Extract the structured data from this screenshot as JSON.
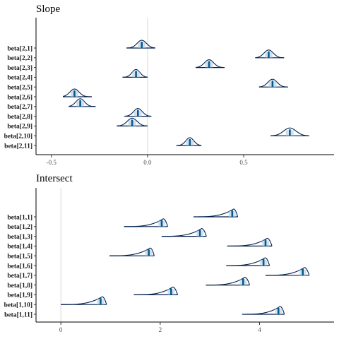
{
  "colors": {
    "ridge": "#011f4b",
    "interval": "#005b96",
    "refline": "#d9d9d9",
    "axis": "#000000"
  },
  "chart_data": [
    {
      "type": "ridgeline",
      "title": "Slope",
      "xlim": [
        -0.58,
        0.97
      ],
      "xticks": [
        -0.5,
        0.0,
        0.5
      ],
      "xtick_labels": [
        "-0.5",
        "0.0",
        "0.5"
      ],
      "vline": 0,
      "density": "symmetric",
      "params": [
        {
          "label": "beta[2,1]",
          "median": -0.03,
          "inner": [
            -0.05,
            -0.01
          ],
          "outer": [
            -0.11,
            0.04
          ]
        },
        {
          "label": "beta[2,2]",
          "median": 0.63,
          "inner": [
            0.61,
            0.65
          ],
          "outer": [
            0.56,
            0.71
          ]
        },
        {
          "label": "beta[2,3]",
          "median": 0.32,
          "inner": [
            0.3,
            0.34
          ],
          "outer": [
            0.25,
            0.4
          ]
        },
        {
          "label": "beta[2,4]",
          "median": -0.06,
          "inner": [
            -0.08,
            -0.04
          ],
          "outer": [
            -0.13,
            0.0
          ]
        },
        {
          "label": "beta[2,5]",
          "median": 0.65,
          "inner": [
            0.63,
            0.67
          ],
          "outer": [
            0.58,
            0.73
          ]
        },
        {
          "label": "beta[2,6]",
          "median": -0.38,
          "inner": [
            -0.4,
            -0.36
          ],
          "outer": [
            -0.44,
            -0.29
          ]
        },
        {
          "label": "beta[2,7]",
          "median": -0.35,
          "inner": [
            -0.37,
            -0.33
          ],
          "outer": [
            -0.41,
            -0.27
          ]
        },
        {
          "label": "beta[2,8]",
          "median": -0.05,
          "inner": [
            -0.07,
            -0.03
          ],
          "outer": [
            -0.12,
            0.02
          ]
        },
        {
          "label": "beta[2,9]",
          "median": -0.08,
          "inner": [
            -0.1,
            -0.06
          ],
          "outer": [
            -0.16,
            0.0
          ]
        },
        {
          "label": "beta[2,10]",
          "median": 0.74,
          "inner": [
            0.72,
            0.76
          ],
          "outer": [
            0.64,
            0.84
          ]
        },
        {
          "label": "beta[2,11]",
          "median": 0.22,
          "inner": [
            0.2,
            0.24
          ],
          "outer": [
            0.15,
            0.28
          ]
        }
      ]
    },
    {
      "type": "ridgeline",
      "title": "Intersect",
      "xlim": [
        -0.5,
        5.5
      ],
      "xticks": [
        0,
        2,
        4
      ],
      "xtick_labels": [
        "0",
        "2",
        "4"
      ],
      "vline": 0,
      "density": "left-skewed",
      "params": [
        {
          "label": "beta[1,1]",
          "median": 3.45,
          "inner": [
            3.38,
            3.52
          ],
          "outer": [
            2.67,
            3.56
          ]
        },
        {
          "label": "beta[1,2]",
          "median": 2.03,
          "inner": [
            1.96,
            2.1
          ],
          "outer": [
            1.27,
            2.15
          ]
        },
        {
          "label": "beta[1,3]",
          "median": 2.8,
          "inner": [
            2.73,
            2.87
          ],
          "outer": [
            2.03,
            2.93
          ]
        },
        {
          "label": "beta[1,4]",
          "median": 4.12,
          "inner": [
            4.05,
            4.19
          ],
          "outer": [
            3.35,
            4.25
          ]
        },
        {
          "label": "beta[1,5]",
          "median": 1.77,
          "inner": [
            1.7,
            1.84
          ],
          "outer": [
            0.98,
            1.88
          ]
        },
        {
          "label": "beta[1,6]",
          "median": 4.08,
          "inner": [
            4.01,
            4.15
          ],
          "outer": [
            3.33,
            4.2
          ]
        },
        {
          "label": "beta[1,7]",
          "median": 4.87,
          "inner": [
            4.8,
            4.94
          ],
          "outer": [
            4.12,
            5.0
          ]
        },
        {
          "label": "beta[1,8]",
          "median": 3.67,
          "inner": [
            3.6,
            3.74
          ],
          "outer": [
            2.92,
            3.8
          ]
        },
        {
          "label": "beta[1,9]",
          "median": 2.22,
          "inner": [
            2.15,
            2.29
          ],
          "outer": [
            1.47,
            2.35
          ]
        },
        {
          "label": "beta[1,10]",
          "median": 0.8,
          "inner": [
            0.73,
            0.87
          ],
          "outer": [
            0.0,
            0.92
          ]
        },
        {
          "label": "beta[1,11]",
          "median": 4.38,
          "inner": [
            4.31,
            4.45
          ],
          "outer": [
            3.65,
            4.5
          ]
        }
      ]
    }
  ]
}
